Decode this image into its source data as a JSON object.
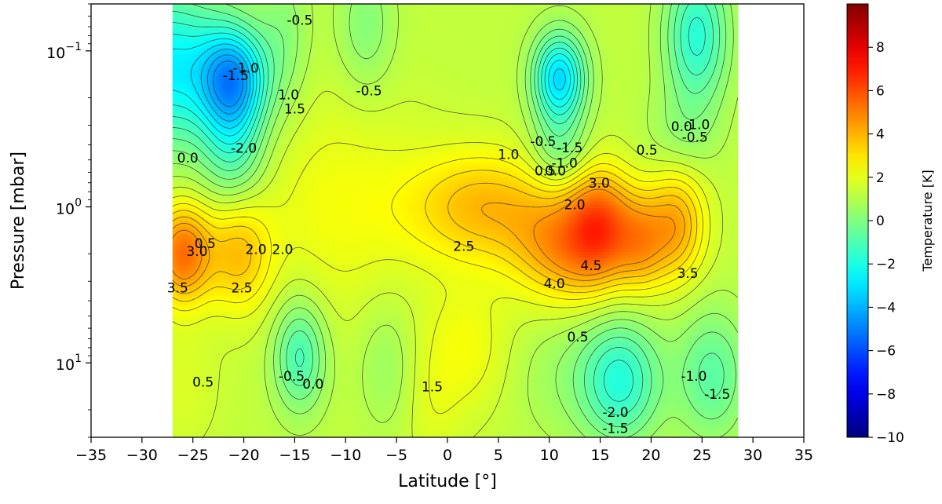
{
  "chart_data": {
    "type": "heatmap",
    "title": "",
    "xlabel": "Latitude [°]",
    "ylabel": "Pressure [mbar]",
    "xlim": [
      -35,
      35
    ],
    "x_ticks": [
      -35,
      -30,
      -25,
      -20,
      -15,
      -10,
      -5,
      0,
      5,
      10,
      15,
      20,
      25,
      30,
      35
    ],
    "y_scale": "log",
    "y_inverted": true,
    "ylim_mbar": [
      0.05,
      30
    ],
    "y_ticks": [
      {
        "value": 0.1,
        "base": "10",
        "exp": "−1"
      },
      {
        "value": 1,
        "base": "10",
        "exp": "0"
      },
      {
        "value": 10,
        "base": "10",
        "exp": "1"
      }
    ],
    "data_lat_range": [
      -27,
      28.5
    ],
    "colorbar": {
      "label": "Temperature [K]",
      "colormap": "jet",
      "vmin": -10,
      "vmax": 10,
      "ticks": [
        "−10",
        "−8",
        "−6",
        "−4",
        "−2",
        "0",
        "2",
        "4",
        "6",
        "8"
      ],
      "tick_values": [
        -10,
        -8,
        -6,
        -4,
        -2,
        0,
        2,
        4,
        6,
        8
      ]
    },
    "features": [
      {
        "lat": -27.5,
        "p": 0.13,
        "t": -4.0,
        "wlat": 4.5,
        "wlog": 0.35
      },
      {
        "lat": -21.0,
        "p": 0.15,
        "t": -4.5,
        "wlat": 2.2,
        "wlog": 0.22
      },
      {
        "lat": -21.0,
        "p": 0.4,
        "t": -2.2,
        "wlat": 2.2,
        "wlog": 0.28
      },
      {
        "lat": -16.0,
        "p": 0.08,
        "t": -1.0,
        "wlat": 1.8,
        "wlog": 0.35
      },
      {
        "lat": -8.0,
        "p": 0.07,
        "t": -1.2,
        "wlat": 2.0,
        "wlog": 0.3
      },
      {
        "lat": 11.0,
        "p": 0.15,
        "t": -4.5,
        "wlat": 1.8,
        "wlog": 0.2
      },
      {
        "lat": 11.0,
        "p": 0.45,
        "t": -1.5,
        "wlat": 2.0,
        "wlog": 0.18
      },
      {
        "lat": 24.5,
        "p": 0.08,
        "t": -3.0,
        "wlat": 2.2,
        "wlog": 0.32
      },
      {
        "lat": 23.0,
        "p": 0.35,
        "t": -0.8,
        "wlat": 2.5,
        "wlog": 0.2
      },
      {
        "lat": -26.0,
        "p": 2.0,
        "t": 4.0,
        "wlat": 2.0,
        "wlog": 0.22
      },
      {
        "lat": -20.5,
        "p": 2.0,
        "t": 2.3,
        "wlat": 2.2,
        "wlog": 0.25
      },
      {
        "lat": -10.5,
        "p": 1.0,
        "t": 1.0,
        "wlat": 6.0,
        "wlog": 0.5
      },
      {
        "lat": 3.5,
        "p": 1.0,
        "t": 2.5,
        "wlat": 5.0,
        "wlog": 0.25
      },
      {
        "lat": 11.5,
        "p": 1.8,
        "t": 3.0,
        "wlat": 3.5,
        "wlog": 0.25
      },
      {
        "lat": 15.0,
        "p": 1.3,
        "t": 3.7,
        "wlat": 2.2,
        "wlog": 0.25
      },
      {
        "lat": 19.0,
        "p": 1.7,
        "t": 2.5,
        "wlat": 1.8,
        "wlog": 0.22
      },
      {
        "lat": 22.5,
        "p": 1.3,
        "t": 2.8,
        "wlat": 2.0,
        "wlog": 0.25
      },
      {
        "lat": -14.5,
        "p": 9.0,
        "t": -2.5,
        "wlat": 1.8,
        "wlog": 0.25
      },
      {
        "lat": -6.0,
        "p": 10.0,
        "t": -0.8,
        "wlat": 2.0,
        "wlog": 0.3
      },
      {
        "lat": 11.0,
        "p": 12.0,
        "t": -0.6,
        "wlat": 3.5,
        "wlog": 0.3
      },
      {
        "lat": 17.0,
        "p": 13.0,
        "t": -3.0,
        "wlat": 2.8,
        "wlog": 0.28
      },
      {
        "lat": 26.0,
        "p": 12.0,
        "t": -2.0,
        "wlat": 2.5,
        "wlog": 0.3
      },
      {
        "lat": -1.5,
        "p": 20.0,
        "t": 0.5,
        "wlat": 2.0,
        "wlog": 0.3
      },
      {
        "lat": -26.0,
        "p": 14.0,
        "t": 0.5,
        "wlat": 2.5,
        "wlog": 0.3
      },
      {
        "lat": 2.0,
        "p": 8.0,
        "t": 1.0,
        "wlat": 3.0,
        "wlog": 0.3
      }
    ],
    "contour_levels": [
      -4.5,
      -4,
      -3.5,
      -3,
      -2.5,
      -2,
      -1.5,
      -1,
      -0.5,
      0,
      0.5,
      1,
      1.5,
      2,
      2.5,
      3,
      3.5,
      4,
      4.5
    ],
    "contour_labels": [
      {
        "text": "-0.5",
        "lat": -14.5,
        "p": 0.064
      },
      {
        "text": "-1.0",
        "lat": -19.8,
        "p": 0.13
      },
      {
        "text": "-1.5",
        "lat": -20.8,
        "p": 0.145
      },
      {
        "text": "1.0",
        "lat": -15.6,
        "p": 0.193
      },
      {
        "text": "1.5",
        "lat": -15.0,
        "p": 0.238
      },
      {
        "text": "-0.5",
        "lat": -7.7,
        "p": 0.182
      },
      {
        "text": "-2.0",
        "lat": -20.0,
        "p": 0.424
      },
      {
        "text": "0.0",
        "lat": -25.5,
        "p": 0.49
      },
      {
        "text": "1.0",
        "lat": 6.0,
        "p": 0.465
      },
      {
        "text": "-0.5",
        "lat": 9.4,
        "p": 0.384
      },
      {
        "text": "-1.5",
        "lat": 12.0,
        "p": 0.422
      },
      {
        "text": "-1.0",
        "lat": 11.5,
        "p": 0.53
      },
      {
        "text": "0.5",
        "lat": 9.6,
        "p": 0.595
      },
      {
        "text": "0.0",
        "lat": 10.6,
        "p": 0.595
      },
      {
        "text": "3.0",
        "lat": 14.9,
        "p": 0.712
      },
      {
        "text": "2.0",
        "lat": 12.5,
        "p": 0.976
      },
      {
        "text": "0.5",
        "lat": 19.6,
        "p": 0.436
      },
      {
        "text": "0.0",
        "lat": 23.0,
        "p": 0.308
      },
      {
        "text": "-1.0",
        "lat": 24.5,
        "p": 0.3
      },
      {
        "text": "-0.5",
        "lat": 24.3,
        "p": 0.361
      },
      {
        "text": "3.0",
        "lat": -24.6,
        "p": 1.95
      },
      {
        "text": "0.5",
        "lat": -23.8,
        "p": 1.73
      },
      {
        "text": "2.0",
        "lat": -18.8,
        "p": 1.89
      },
      {
        "text": "2.0",
        "lat": -16.2,
        "p": 1.89
      },
      {
        "text": "2.5",
        "lat": 1.6,
        "p": 1.81
      },
      {
        "text": "4.5",
        "lat": 14.1,
        "p": 2.4
      },
      {
        "text": "4.0",
        "lat": 10.5,
        "p": 3.14
      },
      {
        "text": "3.5",
        "lat": 23.6,
        "p": 2.7
      },
      {
        "text": "3.5",
        "lat": -26.5,
        "p": 3.34
      },
      {
        "text": "2.5",
        "lat": -20.2,
        "p": 3.34
      },
      {
        "text": "0.5",
        "lat": 12.8,
        "p": 6.9
      },
      {
        "text": "0.5",
        "lat": -24.0,
        "p": 13.4
      },
      {
        "text": "-0.5",
        "lat": -15.3,
        "p": 12.3
      },
      {
        "text": "0.0",
        "lat": -13.2,
        "p": 13.8
      },
      {
        "text": "1.5",
        "lat": -1.5,
        "p": 14.4
      },
      {
        "text": "-1.0",
        "lat": 24.2,
        "p": 12.3
      },
      {
        "text": "-1.5",
        "lat": 26.5,
        "p": 16.0
      },
      {
        "text": "-2.0",
        "lat": 16.5,
        "p": 21.0
      },
      {
        "text": "-1.5",
        "lat": 16.5,
        "p": 26.6
      }
    ]
  }
}
